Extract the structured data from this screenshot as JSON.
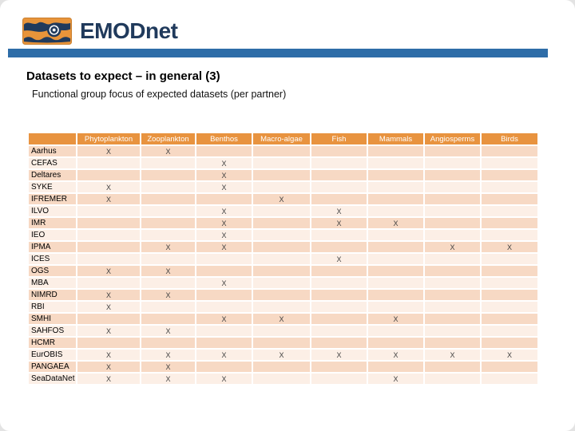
{
  "slide": {
    "logo": {
      "brand": "EMODnet"
    },
    "title": "Datasets to expect – in general (3)",
    "subtitle": "Functional group focus of expected datasets (per partner)",
    "colors": {
      "header_bg": "#E8933F",
      "row_alt_dark": "#F7D9C4",
      "row_alt_light": "#FCEFE6",
      "divider_blue": "#2E6DA8",
      "logo_orange": "#E8943A",
      "logo_navy": "#203A5C",
      "mark_color": "#3F3F3F"
    }
  },
  "chart_data": {
    "type": "table",
    "mark_symbol": "X",
    "columns": [
      "Phytoplankton",
      "Zooplankton",
      "Benthos",
      "Macro-algae",
      "Fish",
      "Mammals",
      "Angiosperms",
      "Birds"
    ],
    "rows": [
      {
        "label": "Aarhus",
        "cells": [
          "X",
          "X",
          "",
          "",
          "",
          "",
          "",
          ""
        ]
      },
      {
        "label": "CEFAS",
        "cells": [
          "",
          "",
          "X",
          "",
          "",
          "",
          "",
          ""
        ]
      },
      {
        "label": "Deltares",
        "cells": [
          "",
          "",
          "X",
          "",
          "",
          "",
          "",
          ""
        ]
      },
      {
        "label": "SYKE",
        "cells": [
          "X",
          "",
          "X",
          "",
          "",
          "",
          "",
          ""
        ]
      },
      {
        "label": "IFREMER",
        "cells": [
          "X",
          "",
          "",
          "X",
          "",
          "",
          "",
          ""
        ]
      },
      {
        "label": "ILVO",
        "cells": [
          "",
          "",
          "X",
          "",
          "X",
          "",
          "",
          ""
        ]
      },
      {
        "label": "IMR",
        "cells": [
          "",
          "",
          "X",
          "",
          "X",
          "X",
          "",
          ""
        ]
      },
      {
        "label": "IEO",
        "cells": [
          "",
          "",
          "X",
          "",
          "",
          "",
          "",
          ""
        ]
      },
      {
        "label": "IPMA",
        "cells": [
          "",
          "X",
          "X",
          "",
          "",
          "",
          "X",
          "X"
        ]
      },
      {
        "label": "ICES",
        "cells": [
          "",
          "",
          "",
          "",
          "X",
          "",
          "",
          ""
        ]
      },
      {
        "label": "OGS",
        "cells": [
          "X",
          "X",
          "",
          "",
          "",
          "",
          "",
          ""
        ]
      },
      {
        "label": "MBA",
        "cells": [
          "",
          "",
          "X",
          "",
          "",
          "",
          "",
          ""
        ]
      },
      {
        "label": "NIMRD",
        "cells": [
          "X",
          "X",
          "",
          "",
          "",
          "",
          "",
          ""
        ]
      },
      {
        "label": "RBI",
        "cells": [
          "X",
          "",
          "",
          "",
          "",
          "",
          "",
          ""
        ]
      },
      {
        "label": "SMHI",
        "cells": [
          "",
          "",
          "X",
          "X",
          "",
          "X",
          "",
          ""
        ]
      },
      {
        "label": "SAHFOS",
        "cells": [
          "X",
          "X",
          "",
          "",
          "",
          "",
          "",
          ""
        ]
      },
      {
        "label": "HCMR",
        "cells": [
          "",
          "",
          "",
          "",
          "",
          "",
          "",
          ""
        ]
      },
      {
        "label": "EurOBIS",
        "cells": [
          "X",
          "X",
          "X",
          "X",
          "X",
          "X",
          "X",
          "X"
        ]
      },
      {
        "label": "PANGAEA",
        "cells": [
          "X",
          "X",
          "",
          "",
          "",
          "",
          "",
          ""
        ]
      },
      {
        "label": "SeaDataNet",
        "cells": [
          "X",
          "X",
          "X",
          "",
          "",
          "X",
          "",
          ""
        ]
      }
    ]
  }
}
